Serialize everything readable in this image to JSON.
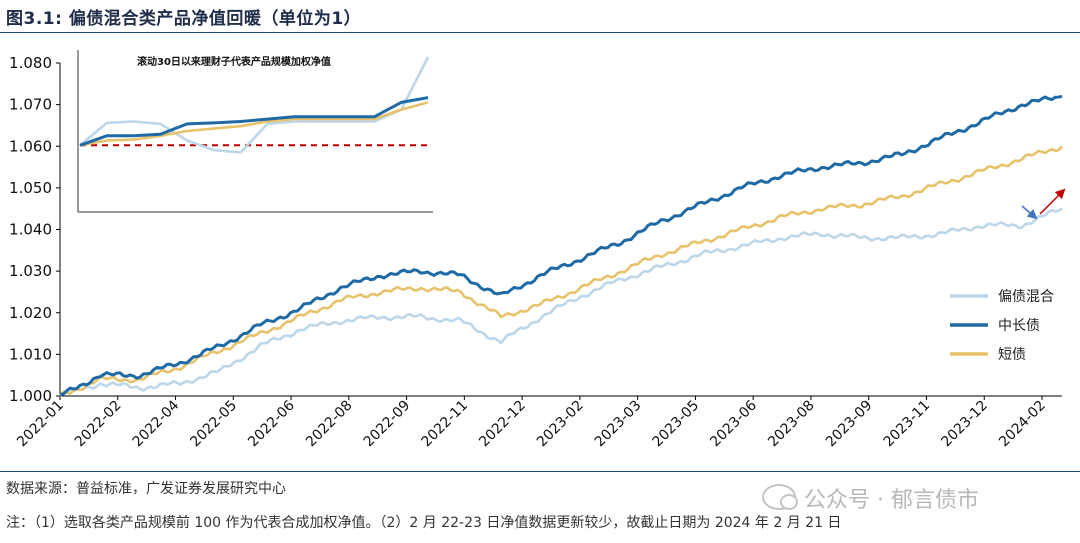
{
  "header": {
    "title": "图3.1:  偏债混合类产品净值回暖（单位为1）"
  },
  "footer": {
    "source": "数据来源：普益标准，广发证券发展研究中心",
    "note": "注：（1）选取各类产品规模前 100 作为代表合成加权净值。（2）2 月 22-23 日净值数据更新较少，故截止日期为 2024 年 2 月 21 日",
    "watermark": "公众号 · 郁言债市"
  },
  "chart_data": {
    "type": "line",
    "title": "",
    "xlabel": "",
    "ylabel": "",
    "ylim": [
      1.0,
      1.08
    ],
    "yticks": [
      "1.000",
      "1.010",
      "1.020",
      "1.030",
      "1.040",
      "1.050",
      "1.060",
      "1.070",
      "1.080"
    ],
    "xticks": [
      "2022-01",
      "2022-02",
      "2022-04",
      "2022-05",
      "2022-06",
      "2022-08",
      "2022-09",
      "2022-11",
      "2022-12",
      "2023-02",
      "2023-03",
      "2023-05",
      "2023-06",
      "2023-08",
      "2023-09",
      "2023-11",
      "2023-12",
      "2024-02"
    ],
    "x": [
      "2022-01",
      "2022-02",
      "2022-03",
      "2022-04",
      "2022-05",
      "2022-06",
      "2022-07",
      "2022-08",
      "2022-09",
      "2022-10",
      "2022-11",
      "2022-12",
      "2023-01",
      "2023-02",
      "2023-03",
      "2023-04",
      "2023-05",
      "2023-06",
      "2023-07",
      "2023-08",
      "2023-09",
      "2023-10",
      "2023-11",
      "2023-12",
      "2024-01",
      "2024-02"
    ],
    "series": [
      {
        "name": "偏债混合",
        "color": "#bcd6ea",
        "values": [
          1.0,
          1.003,
          1.002,
          1.003,
          1.006,
          1.012,
          1.016,
          1.018,
          1.019,
          1.019,
          1.018,
          1.013,
          1.019,
          1.024,
          1.028,
          1.031,
          1.034,
          1.036,
          1.038,
          1.039,
          1.038,
          1.038,
          1.039,
          1.041,
          1.041,
          1.045
        ]
      },
      {
        "name": "中长债",
        "color": "#1f6aa5",
        "values": [
          1.0,
          1.005,
          1.005,
          1.008,
          1.012,
          1.017,
          1.021,
          1.026,
          1.029,
          1.03,
          1.029,
          1.024,
          1.029,
          1.033,
          1.037,
          1.042,
          1.046,
          1.05,
          1.053,
          1.055,
          1.056,
          1.058,
          1.062,
          1.066,
          1.07,
          1.072
        ]
      },
      {
        "name": "短债",
        "color": "#e8c26a",
        "values": [
          1.0,
          1.004,
          1.004,
          1.007,
          1.011,
          1.015,
          1.019,
          1.023,
          1.025,
          1.026,
          1.025,
          1.019,
          1.022,
          1.026,
          1.03,
          1.034,
          1.037,
          1.04,
          1.043,
          1.045,
          1.046,
          1.048,
          1.051,
          1.054,
          1.057,
          1.06
        ]
      }
    ],
    "legend": "right",
    "grid": false,
    "arrows": [
      {
        "color": "#4472c4",
        "direction": "down-right"
      },
      {
        "color": "#c00000",
        "direction": "up-right"
      }
    ],
    "inset": {
      "title": "滚动30日以来理财子代表产品规模加权净值",
      "ylim": [
        1.0465,
        1.0805
      ],
      "reference_line": {
        "value": 1.0605,
        "color": "#c00000",
        "style": "dashed"
      },
      "series": [
        {
          "name": "偏债混合",
          "color": "#bcd6ea",
          "values": [
            1.0605,
            1.0652,
            1.0655,
            1.065,
            1.0615,
            1.0595,
            1.059,
            1.065,
            1.0655,
            1.0655,
            1.0655,
            1.0655,
            1.068,
            1.079
          ]
        },
        {
          "name": "中长债",
          "color": "#1f6aa5",
          "values": [
            1.0605,
            1.0625,
            1.0625,
            1.0628,
            1.065,
            1.0652,
            1.0655,
            1.066,
            1.0665,
            1.0665,
            1.0665,
            1.0665,
            1.0695,
            1.0705
          ]
        },
        {
          "name": "短债",
          "color": "#e8c26a",
          "values": [
            1.0605,
            1.0615,
            1.0617,
            1.0625,
            1.0635,
            1.064,
            1.0645,
            1.0655,
            1.066,
            1.066,
            1.066,
            1.066,
            1.068,
            1.0695
          ]
        }
      ]
    }
  }
}
